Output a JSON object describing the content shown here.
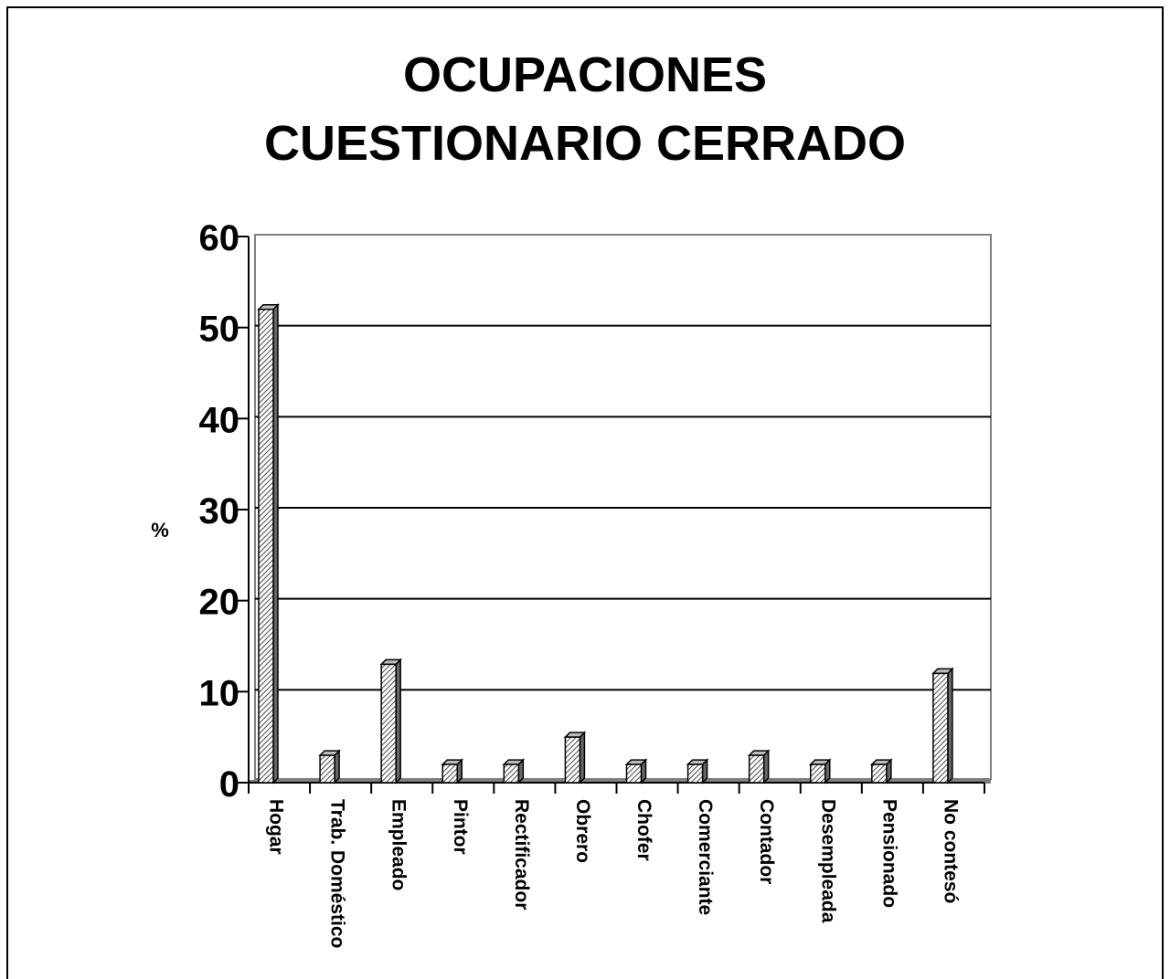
{
  "chart_data": {
    "type": "bar",
    "title": "OCUPACIONES",
    "subtitle": "CUESTIONARIO CERRADO",
    "y_label": "%",
    "categories": [
      "Hogar",
      "Trab. Doméstico",
      "Empleado",
      "Pintor",
      "Rectificador",
      "Obrero",
      "Chofer",
      "Comerciante",
      "Contador",
      "Desempleada",
      "Pensionado",
      "No contesó"
    ],
    "values": [
      52,
      3,
      13,
      2,
      2,
      5,
      2,
      2,
      3,
      2,
      2,
      12
    ],
    "color": "#888888",
    "ylim": [
      0,
      60
    ],
    "yticks": [
      0,
      10,
      20,
      30,
      40,
      50,
      60
    ],
    "grid": true
  }
}
